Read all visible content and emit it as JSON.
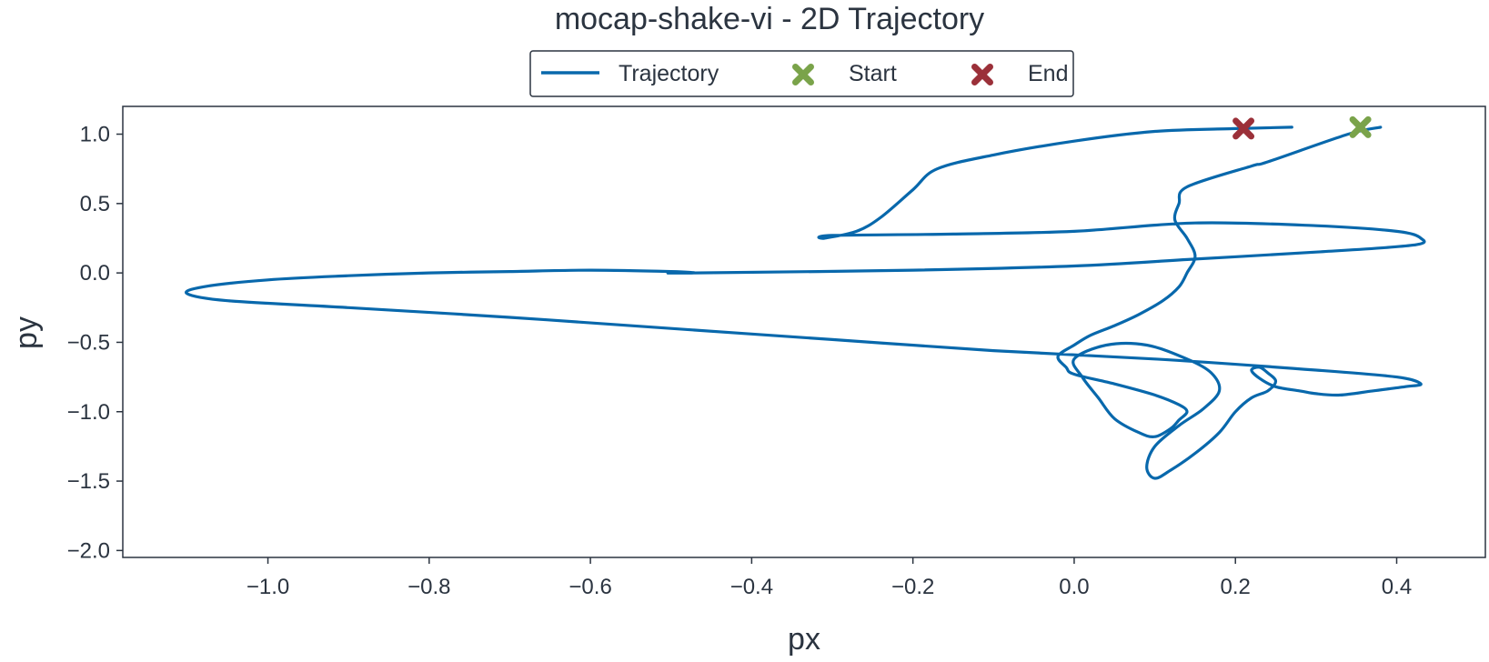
{
  "chart_data": {
    "type": "line",
    "title": "mocap-shake-vi - 2D Trajectory",
    "xlabel": "px",
    "ylabel": "py",
    "xlim": [
      -1.18,
      0.51
    ],
    "ylim": [
      -2.05,
      1.2
    ],
    "xticks": [
      -1.0,
      -0.8,
      -0.6,
      -0.4,
      -0.2,
      0.0,
      0.2,
      0.4
    ],
    "yticks": [
      -2.0,
      -1.5,
      -1.0,
      -0.5,
      0.0,
      0.5,
      1.0
    ],
    "xtick_labels": [
      "−1.0",
      "−0.8",
      "−0.6",
      "−0.4",
      "−0.2",
      "0.0",
      "0.2",
      "0.4"
    ],
    "ytick_labels": [
      "−2.0",
      "−1.5",
      "−1.0",
      "−0.5",
      "0.0",
      "0.5",
      "1.0"
    ],
    "grid": false,
    "legend_placement": "top-center",
    "legend": [
      {
        "label": "Trajectory",
        "kind": "line",
        "color": "#0868ac"
      },
      {
        "label": "Start",
        "kind": "x-marker",
        "color": "#7aa34a"
      },
      {
        "label": "End",
        "kind": "x-marker",
        "color": "#9b3039"
      }
    ],
    "series": [
      {
        "name": "Trajectory",
        "color": "#0868ac",
        "x": [
          0.38,
          0.34,
          0.24,
          0.22,
          0.14,
          0.13,
          0.125,
          0.14,
          0.15,
          0.14,
          0.13,
          0.11,
          0.08,
          0.05,
          0.02,
          0.0,
          -0.02,
          -0.01,
          0.0,
          0.05,
          0.1,
          0.13,
          0.14,
          0.13,
          0.12,
          0.1,
          0.08,
          0.05,
          0.03,
          0.01,
          0.0,
          0.04,
          0.09,
          0.14,
          0.17,
          0.18,
          0.16,
          0.13,
          0.1,
          0.09,
          0.1,
          0.12,
          0.15,
          0.18,
          0.2,
          0.22,
          0.24,
          0.25,
          0.24,
          0.23,
          0.22,
          0.23,
          0.25,
          0.28,
          0.3,
          0.33,
          0.37,
          0.41,
          0.43,
          0.4,
          0.3,
          0.1,
          -0.1,
          -0.3,
          -0.5,
          -0.7,
          -0.9,
          -1.05,
          -1.1,
          -1.08,
          -1.0,
          -0.9,
          -0.8,
          -0.7,
          -0.6,
          -0.5,
          -0.47,
          -0.5,
          -0.47,
          -0.2,
          0.0,
          0.15,
          0.3,
          0.42,
          0.43,
          0.4,
          0.3,
          0.15,
          0.0,
          -0.15,
          -0.3,
          -0.31,
          -0.27,
          -0.24,
          -0.2,
          -0.17,
          -0.1,
          0.0,
          0.1,
          0.2,
          0.27
        ],
        "y": [
          1.05,
          1.0,
          0.8,
          0.77,
          0.62,
          0.5,
          0.38,
          0.25,
          0.12,
          0.0,
          -0.1,
          -0.2,
          -0.3,
          -0.38,
          -0.45,
          -0.52,
          -0.6,
          -0.68,
          -0.73,
          -0.8,
          -0.88,
          -0.95,
          -1.0,
          -1.06,
          -1.12,
          -1.18,
          -1.15,
          -1.05,
          -0.9,
          -0.75,
          -0.62,
          -0.52,
          -0.52,
          -0.62,
          -0.72,
          -0.85,
          -0.98,
          -1.1,
          -1.25,
          -1.4,
          -1.48,
          -1.42,
          -1.3,
          -1.15,
          -1.0,
          -0.9,
          -0.85,
          -0.78,
          -0.72,
          -0.68,
          -0.7,
          -0.76,
          -0.82,
          -0.85,
          -0.87,
          -0.88,
          -0.85,
          -0.82,
          -0.8,
          -0.75,
          -0.7,
          -0.62,
          -0.56,
          -0.48,
          -0.4,
          -0.32,
          -0.25,
          -0.2,
          -0.15,
          -0.1,
          -0.05,
          -0.02,
          0.0,
          0.01,
          0.02,
          0.01,
          0.0,
          0.0,
          0.0,
          0.02,
          0.05,
          0.1,
          0.15,
          0.2,
          0.25,
          0.3,
          0.34,
          0.36,
          0.3,
          0.28,
          0.27,
          0.25,
          0.3,
          0.4,
          0.6,
          0.75,
          0.85,
          0.95,
          1.02,
          1.04,
          1.05
        ]
      }
    ],
    "points": [
      {
        "name": "Start",
        "x": 0.355,
        "y": 1.05,
        "marker": "X",
        "color": "#7aa34a"
      },
      {
        "name": "End",
        "x": 0.21,
        "y": 1.04,
        "marker": "X",
        "color": "#9b3039"
      }
    ]
  }
}
